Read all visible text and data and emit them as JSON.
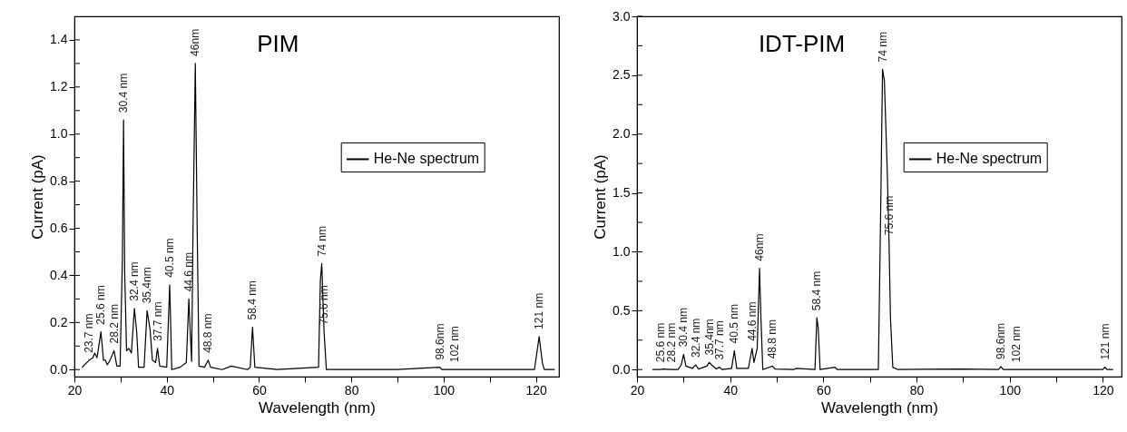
{
  "chart_data": [
    {
      "type": "line",
      "title": "PIM",
      "xlabel": "Wavelength (nm)",
      "ylabel": "Current (pA)",
      "legend": "right",
      "grid": false,
      "x": [
        21.7,
        23.2,
        24,
        24.4,
        24.9,
        25.75,
        26.3,
        26.7,
        27.1,
        27.6,
        28.6,
        29.2,
        29.9,
        30.4,
        30.65,
        30.9,
        31.3,
        31.8,
        32.35,
        33,
        33.5,
        33.9,
        35.1,
        35.75,
        36.4,
        36.9,
        37.6,
        38,
        38.5,
        40,
        40.65,
        41.1,
        42.9,
        44.25,
        44.8,
        45.1,
        45.4,
        45.7,
        46.2,
        46.6,
        47,
        48.2,
        49,
        49.5,
        52,
        54,
        57.5,
        58.1,
        58.6,
        59.1,
        64,
        72.9,
        73.3,
        73.6,
        74.1,
        74.6,
        79,
        90,
        99.2,
        99.6,
        102.4,
        119.7,
        120.7,
        121.4,
        121.8,
        124
      ],
      "series": [
        {
          "name": "He-Ne spectrum",
          "color": "#000000",
          "values": [
            0.01,
            0.04,
            0.05,
            0.07,
            0.05,
            0.16,
            0.04,
            0.04,
            0.02,
            0.035,
            0.08,
            0.015,
            0.015,
            0.47,
            1.06,
            0.41,
            0.08,
            0.09,
            0.07,
            0.26,
            0.16,
            0.01,
            0.01,
            0.25,
            0.17,
            0.04,
            0.03,
            0.09,
            0.015,
            0.01,
            0.36,
            0.0,
            0.01,
            0.03,
            0.3,
            0.16,
            0.035,
            0.59,
            1.3,
            0.6,
            0.015,
            0.01,
            0.04,
            0.01,
            0.0,
            0.015,
            0.0,
            0.01,
            0.18,
            0.01,
            0.0,
            0.01,
            0.38,
            0.45,
            0.16,
            0.0,
            0.0,
            0.0,
            0.01,
            0.0,
            0.0,
            0.0,
            0.14,
            0.03,
            0.0,
            0.0
          ]
        }
      ],
      "xlim": [
        20,
        125
      ],
      "ylim": [
        -0.03,
        1.5
      ],
      "xticks": [
        20,
        {
          "value": 30,
          "label": null
        },
        40,
        {
          "value": 50,
          "label": null
        },
        60,
        {
          "value": 70,
          "label": null
        },
        80,
        {
          "value": 90,
          "label": null
        },
        100,
        {
          "value": 110,
          "label": null
        },
        120
      ],
      "yticks": [
        {
          "value": 0,
          "label": "0.0"
        },
        {
          "value": 0.1,
          "label": null
        },
        0.2,
        {
          "value": 0.3,
          "label": null
        },
        0.4,
        {
          "value": 0.5,
          "label": null
        },
        0.6,
        {
          "value": 0.7,
          "label": null
        },
        0.8,
        {
          "value": 0.9,
          "label": null
        },
        {
          "value": 1,
          "label": "1.0"
        },
        {
          "value": 1.1,
          "label": null
        },
        1.2,
        {
          "value": 1.3,
          "label": null
        },
        1.4
      ],
      "annotations": [
        {
          "text": "23.7 nm",
          "x": 23.2,
          "y": 0.04
        },
        {
          "text": "25.6 nm",
          "x": 25.75,
          "y": 0.16
        },
        {
          "text": "28.2 nm",
          "x": 28.6,
          "y": 0.08
        },
        {
          "text": "30.4 nm",
          "x": 30.65,
          "y": 1.06
        },
        {
          "text": "32.4 nm",
          "x": 33,
          "y": 0.26
        },
        {
          "text": "35.4nm",
          "x": 35.75,
          "y": 0.25
        },
        {
          "text": "37.7 nm",
          "x": 38,
          "y": 0.09
        },
        {
          "text": "40.5 nm",
          "x": 40.65,
          "y": 0.36
        },
        {
          "text": "44.6 nm",
          "x": 44.8,
          "y": 0.3
        },
        {
          "text": "46nm",
          "x": 46.2,
          "y": 1.3
        },
        {
          "text": "48.8 nm",
          "x": 49,
          "y": 0.04
        },
        {
          "text": "58.4 nm",
          "x": 58.6,
          "y": 0.18
        },
        {
          "text": "74 nm",
          "x": 73.6,
          "y": 0.45
        },
        {
          "text": "75.6 nm",
          "x": 74.1,
          "y": 0.16
        },
        {
          "text": "98.6nm",
          "x": 99.2,
          "y": 0.01
        },
        {
          "text": "102 nm",
          "x": 102.4,
          "y": 0.0
        },
        {
          "text": "121 nm",
          "x": 120.7,
          "y": 0.14
        }
      ]
    },
    {
      "type": "line",
      "title": "IDT-PIM",
      "xlabel": "Wavelength (nm)",
      "ylabel": "Current (pA)",
      "legend": "right",
      "grid": false,
      "x": [
        23.4,
        25,
        25.5,
        27.4,
        28.8,
        29.5,
        30,
        30.5,
        31.9,
        32.6,
        33.2,
        35,
        35.5,
        36,
        37,
        37.7,
        38.3,
        40.3,
        40.9,
        41.4,
        43.9,
        44.7,
        45.1,
        45.8,
        46.3,
        46.6,
        47,
        49.1,
        49.6,
        53.6,
        54.2,
        58.2,
        58.6,
        58.9,
        59.3,
        62.5,
        63,
        71.8,
        72.3,
        72.7,
        73.1,
        73.7,
        74.1,
        74.4,
        74.9,
        76,
        89.7,
        97.6,
        98.1,
        98.6,
        101.5,
        120,
        120.4,
        120.9,
        122.1
      ],
      "series": [
        {
          "name": "He-Ne spectrum",
          "color": "#000000",
          "values": [
            0.0,
            0.0,
            0.005,
            0.0,
            0.0,
            0.04,
            0.13,
            0.03,
            0.01,
            0.04,
            0.005,
            0.03,
            0.06,
            0.04,
            0.005,
            0.02,
            0.0,
            0.01,
            0.16,
            0.01,
            0.01,
            0.18,
            0.06,
            0.18,
            0.86,
            0.44,
            0.0,
            0.03,
            0.005,
            0.0,
            0.01,
            0.0,
            0.44,
            0.35,
            0.0,
            0.02,
            0.0,
            0.0,
            1.34,
            2.55,
            2.45,
            1.7,
            1.08,
            0.44,
            0.02,
            0.0,
            0.005,
            0.0,
            0.025,
            0.0,
            0.0,
            0.0,
            0.02,
            0.0,
            0.0
          ]
        }
      ],
      "xlim": [
        20,
        124
      ],
      "ylim": [
        -0.06,
        3.0
      ],
      "xticks": [
        20,
        {
          "value": 30,
          "label": null
        },
        40,
        {
          "value": 50,
          "label": null
        },
        60,
        {
          "value": 70,
          "label": null
        },
        80,
        {
          "value": 90,
          "label": null
        },
        100,
        {
          "value": 110,
          "label": null
        },
        120
      ],
      "yticks": [
        {
          "value": 0,
          "label": "0.0"
        },
        {
          "value": 0.25,
          "label": null
        },
        0.5,
        {
          "value": 0.75,
          "label": null
        },
        {
          "value": 1,
          "label": "1.0"
        },
        {
          "value": 1.25,
          "label": null
        },
        1.5,
        {
          "value": 1.75,
          "label": null
        },
        {
          "value": 2,
          "label": "2.0"
        },
        {
          "value": 2.25,
          "label": null
        },
        2.5,
        {
          "value": 2.75,
          "label": null
        },
        {
          "value": 3,
          "label": "3.0"
        }
      ],
      "annotations": [
        {
          "text": "25.6 nm",
          "x": 25,
          "y": 0.0
        },
        {
          "text": "28.2 nm",
          "x": 27.4,
          "y": 0.0
        },
        {
          "text": "30.4 nm",
          "x": 30,
          "y": 0.13
        },
        {
          "text": "32.4 nm",
          "x": 32.6,
          "y": 0.04
        },
        {
          "text": "35.4nm",
          "x": 35.5,
          "y": 0.06
        },
        {
          "text": "37.7 nm",
          "x": 37.7,
          "y": 0.02
        },
        {
          "text": "40.5 nm",
          "x": 40.9,
          "y": 0.16
        },
        {
          "text": "44.6 nm",
          "x": 44.7,
          "y": 0.18
        },
        {
          "text": "46nm",
          "x": 46.3,
          "y": 0.86
        },
        {
          "text": "48.8 nm",
          "x": 49.1,
          "y": 0.03
        },
        {
          "text": "58.4 nm",
          "x": 58.6,
          "y": 0.44
        },
        {
          "text": "74 nm",
          "x": 72.7,
          "y": 2.55
        },
        {
          "text": "75.6 nm",
          "x": 74.1,
          "y": 1.08
        },
        {
          "text": "98.6nm",
          "x": 98.1,
          "y": 0.025
        },
        {
          "text": "102 nm",
          "x": 101.5,
          "y": 0.0
        },
        {
          "text": "121 nm",
          "x": 120.4,
          "y": 0.02
        }
      ]
    }
  ]
}
